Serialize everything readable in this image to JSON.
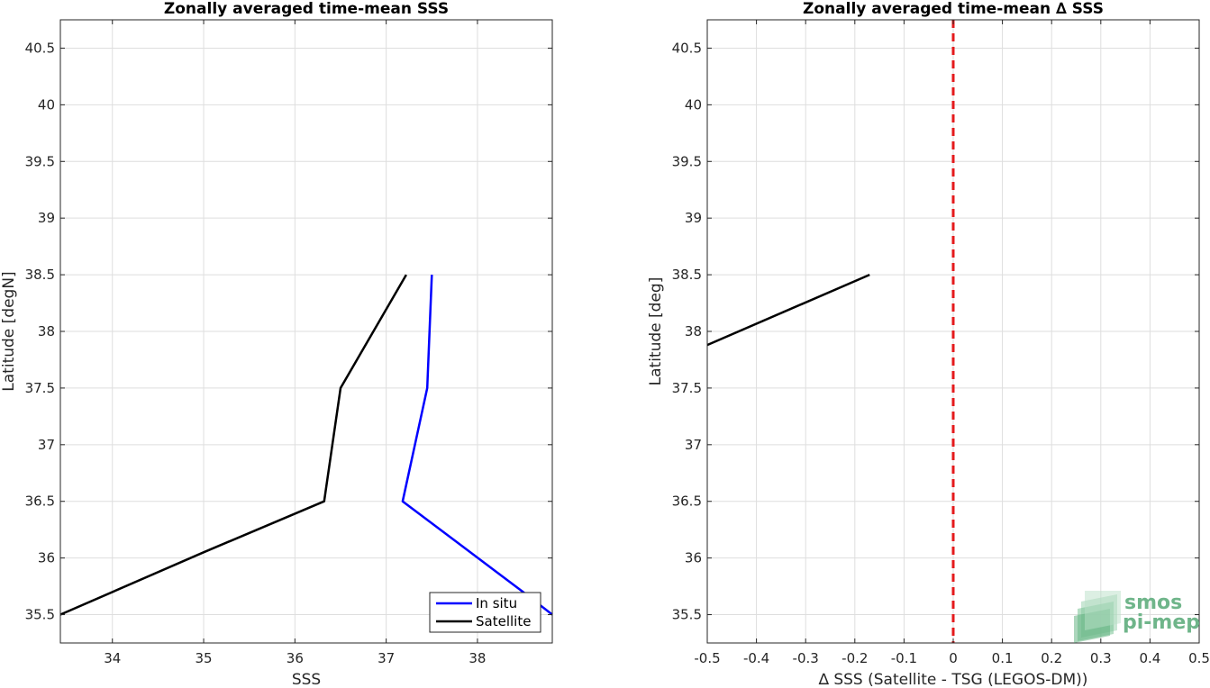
{
  "chart_data": [
    {
      "type": "line",
      "title": "Zonally averaged time-mean SSS",
      "xlabel": "SSS",
      "ylabel": "Latitude [degN]",
      "xlim": [
        33.43,
        38.82
      ],
      "ylim": [
        35.25,
        40.75
      ],
      "xticks": [
        34,
        35,
        36,
        37,
        38
      ],
      "yticks": [
        35.5,
        36,
        36.5,
        37,
        37.5,
        38,
        38.5,
        39,
        39.5,
        40,
        40.5
      ],
      "grid": true,
      "legend_position": "bottom-right",
      "series": [
        {
          "name": "In situ",
          "color": "#0000ff",
          "x": [
            38.82,
            38.5,
            37.18,
            37.45,
            37.5
          ],
          "y": [
            35.5,
            35.7,
            36.5,
            37.5,
            38.5
          ]
        },
        {
          "name": "Satellite",
          "color": "#000000",
          "x": [
            33.43,
            35.0,
            36.32,
            36.5,
            37.22
          ],
          "y": [
            35.5,
            36.05,
            36.5,
            37.5,
            38.5
          ]
        }
      ]
    },
    {
      "type": "line",
      "title": "Zonally averaged time-mean ∆ SSS",
      "xlabel": "∆ SSS (Satellite - TSG (LEGOS-DM))",
      "ylabel": "Latitude [deg]",
      "xlim": [
        -0.5,
        0.5
      ],
      "ylim": [
        35.25,
        40.75
      ],
      "xticks": [
        -0.5,
        -0.4,
        -0.3,
        -0.2,
        -0.1,
        0,
        0.1,
        0.2,
        0.3,
        0.4,
        0.5
      ],
      "yticks": [
        35.5,
        36,
        36.5,
        37,
        37.5,
        38,
        38.5,
        39,
        39.5,
        40,
        40.5
      ],
      "grid": true,
      "reference_line": {
        "x": 0,
        "color": "#e41a1c",
        "style": "dashed"
      },
      "series": [
        {
          "color": "#000000",
          "x": [
            -0.5,
            -0.17
          ],
          "y": [
            37.88,
            38.5
          ]
        }
      ]
    }
  ],
  "logo": {
    "line1": "smos",
    "line2": "pi-mep",
    "color": "#6fb58a"
  }
}
